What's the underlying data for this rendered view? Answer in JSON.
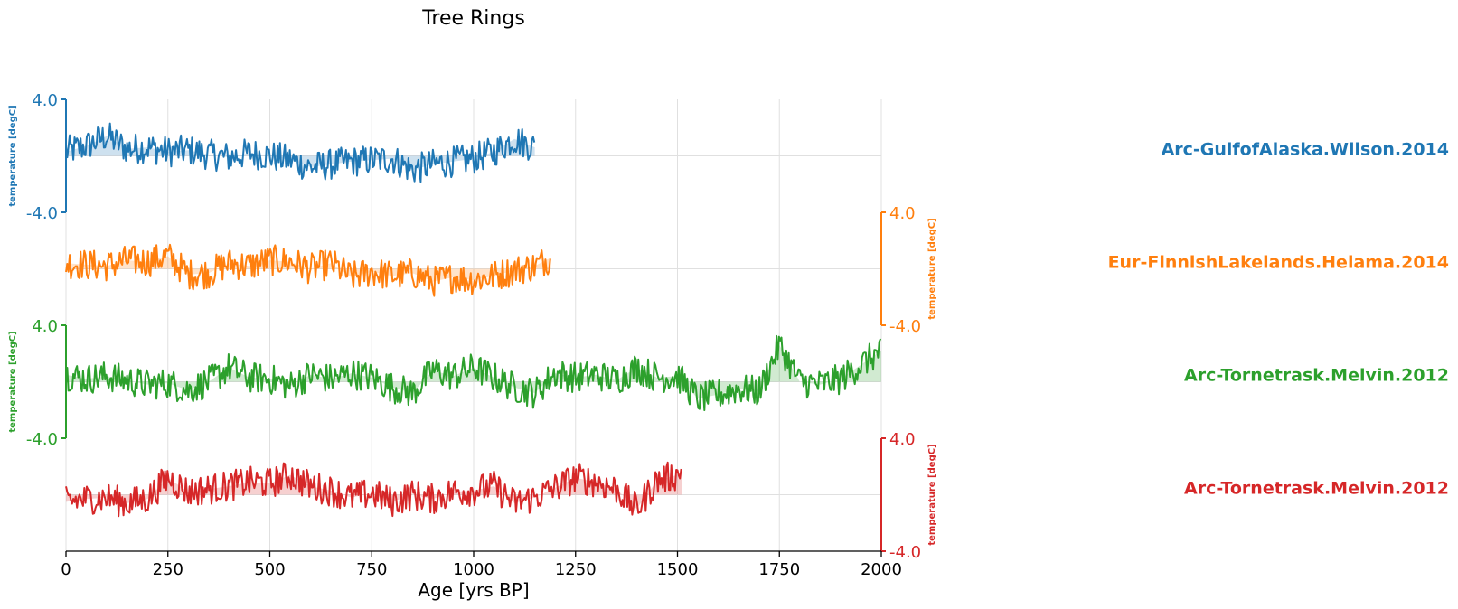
{
  "chart_data": {
    "type": "line",
    "title": "Tree Rings",
    "xlabel": "Age [yrs BP]",
    "xlim": [
      0,
      2000
    ],
    "xticks": [
      "0",
      "250",
      "500",
      "750",
      "1000",
      "1250",
      "1500",
      "1750",
      "2000"
    ],
    "grid": true,
    "series": [
      {
        "name": "Arc-GulfofAlaska.Wilson.2014",
        "color": "#1f77b4",
        "ylabel": "temperature [degC]",
        "ylim": [
          -4.0,
          4.0
        ],
        "yticks": [
          "4.0",
          "-4.0"
        ],
        "axis_side": "left",
        "x_range": [
          0,
          1150
        ],
        "baseline": 0.0,
        "x": [
          0,
          50,
          100,
          150,
          200,
          250,
          300,
          350,
          400,
          450,
          500,
          550,
          600,
          650,
          700,
          750,
          800,
          850,
          900,
          950,
          1000,
          1050,
          1100,
          1150
        ],
        "y": [
          0.3,
          0.7,
          1.4,
          0.5,
          0.6,
          0.3,
          0.4,
          0.1,
          -0.1,
          0.2,
          0.0,
          -0.3,
          -0.8,
          -0.6,
          -0.4,
          -0.3,
          -0.2,
          -1.0,
          -0.6,
          -0.4,
          -0.2,
          0.3,
          1.2,
          0.6
        ]
      },
      {
        "name": "Eur-FinnishLakelands.Helama.2014",
        "color": "#ff7f0e",
        "ylabel": "temperature [degC]",
        "ylim": [
          -4.0,
          4.0
        ],
        "yticks": [
          "4.0",
          "-4.0"
        ],
        "axis_side": "right",
        "x_range": [
          0,
          1190
        ],
        "baseline": 0.0,
        "x": [
          0,
          50,
          100,
          150,
          200,
          250,
          300,
          350,
          400,
          450,
          500,
          550,
          600,
          650,
          700,
          750,
          800,
          850,
          900,
          950,
          1000,
          1050,
          1100,
          1150,
          1190
        ],
        "y": [
          0.4,
          0.3,
          0.2,
          0.6,
          0.5,
          0.9,
          -0.4,
          -0.3,
          0.4,
          0.2,
          0.6,
          0.5,
          0.0,
          0.4,
          -0.6,
          -0.2,
          -0.5,
          -0.3,
          -0.9,
          -0.6,
          -0.8,
          -0.5,
          -0.1,
          0.2,
          0.8
        ]
      },
      {
        "name": "Arc-Tornetrask.Melvin.2012",
        "color": "#2ca02c",
        "ylabel": "temperature [degC]",
        "ylim": [
          -4.0,
          4.0
        ],
        "yticks": [
          "4.0",
          "-4.0"
        ],
        "axis_side": "left",
        "x_range": [
          0,
          2000
        ],
        "baseline": 0.0,
        "x": [
          0,
          50,
          100,
          150,
          200,
          250,
          300,
          350,
          400,
          450,
          500,
          550,
          600,
          650,
          700,
          750,
          800,
          850,
          900,
          950,
          1000,
          1050,
          1100,
          1150,
          1200,
          1250,
          1300,
          1350,
          1400,
          1450,
          1500,
          1550,
          1600,
          1650,
          1700,
          1750,
          1800,
          1850,
          1900,
          1950,
          2000
        ],
        "y": [
          0.5,
          0.2,
          0.4,
          0.1,
          -0.2,
          -0.1,
          -0.6,
          0.0,
          1.0,
          0.3,
          0.2,
          -0.3,
          0.5,
          0.2,
          0.6,
          0.3,
          -0.4,
          -0.8,
          0.8,
          0.4,
          1.0,
          0.3,
          -0.4,
          -0.8,
          0.6,
          0.3,
          0.5,
          0.1,
          1.0,
          0.3,
          0.4,
          -1.2,
          -0.9,
          -0.5,
          -0.7,
          2.6,
          0.0,
          -0.2,
          0.2,
          1.2,
          2.2
        ]
      },
      {
        "name": "Arc-Tornetrask.Melvin.2012",
        "color": "#d62728",
        "ylabel": "temperature [degC]",
        "ylim": [
          -4.0,
          4.0
        ],
        "yticks": [
          "4.0",
          "-4.0"
        ],
        "axis_side": "right",
        "x_range": [
          0,
          1510
        ],
        "baseline": 0.0,
        "x": [
          0,
          50,
          100,
          150,
          200,
          250,
          300,
          350,
          400,
          450,
          500,
          550,
          600,
          650,
          700,
          750,
          800,
          850,
          900,
          950,
          1000,
          1050,
          1100,
          1150,
          1200,
          1250,
          1300,
          1350,
          1400,
          1450,
          1500,
          1510
        ],
        "y": [
          -0.5,
          -0.3,
          -0.2,
          -0.6,
          -0.3,
          1.2,
          0.2,
          0.4,
          0.6,
          0.9,
          0.8,
          1.4,
          0.6,
          0.3,
          -0.2,
          0.1,
          -0.5,
          0.0,
          -0.3,
          0.2,
          0.3,
          0.6,
          -0.6,
          -0.2,
          0.5,
          1.2,
          0.9,
          0.4,
          -1.0,
          1.0,
          1.4,
          1.6
        ]
      }
    ]
  }
}
